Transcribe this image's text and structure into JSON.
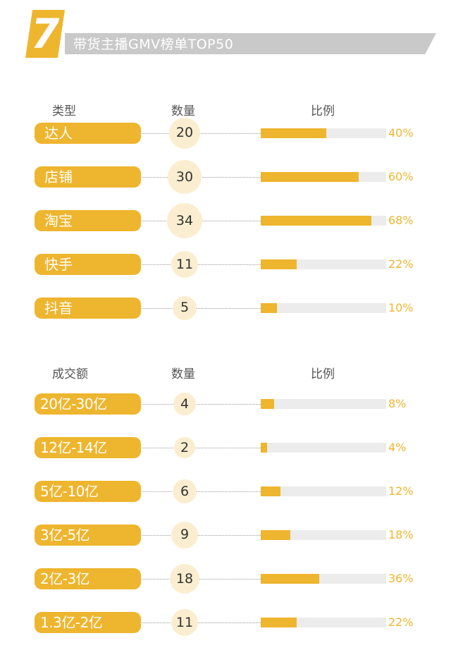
{
  "banner": {
    "badge": "7",
    "title": "带货主播GMV榜单TOP50"
  },
  "colors": {
    "accent": "#eeb52e",
    "circle": "#fbeed0",
    "track": "#ececec",
    "banner": "#c9c9c9"
  },
  "chart_data": [
    {
      "type": "bar",
      "headers": {
        "category": "类型",
        "count": "数量",
        "share": "比例"
      },
      "categories": [
        "达人",
        "店铺",
        "淘宝",
        "快手",
        "抖音"
      ],
      "counts": [
        20,
        30,
        34,
        11,
        5
      ],
      "values": [
        40,
        60,
        68,
        22,
        10
      ],
      "labels": [
        "40%",
        "60%",
        "68%",
        "22%",
        "10%"
      ],
      "ylim": [
        0,
        100
      ]
    },
    {
      "type": "bar",
      "headers": {
        "category": "成交额",
        "count": "数量",
        "share": "比例"
      },
      "categories": [
        "20亿-30亿",
        "12亿-14亿",
        "5亿-10亿",
        "3亿-5亿",
        "2亿-3亿",
        "1.3亿-2亿"
      ],
      "counts": [
        4,
        2,
        6,
        9,
        18,
        11
      ],
      "values": [
        8,
        4,
        12,
        18,
        36,
        22
      ],
      "labels": [
        "8%",
        "4%",
        "12%",
        "18%",
        "36%",
        "22%"
      ],
      "ylim": [
        0,
        100
      ]
    }
  ]
}
